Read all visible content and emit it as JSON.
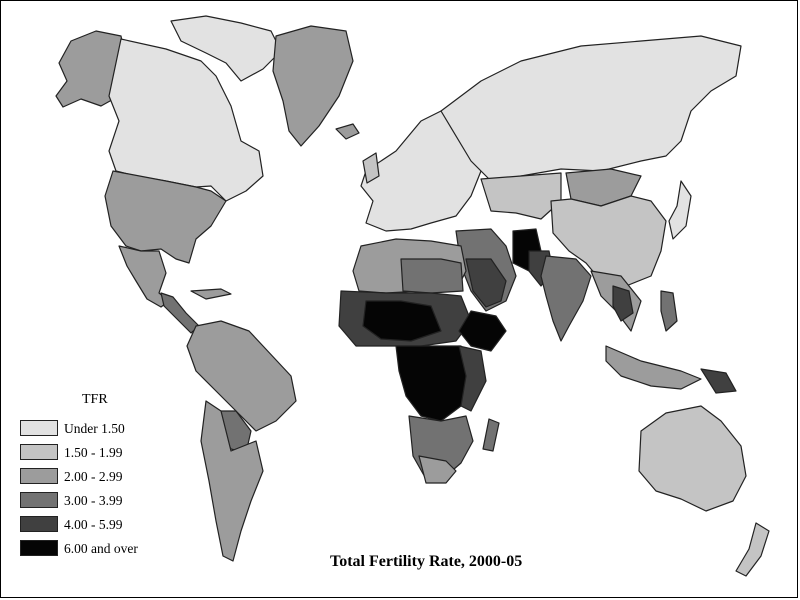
{
  "map": {
    "title": "Total Fertility Rate, 2000-05",
    "legend": {
      "title": "TFR",
      "items": [
        {
          "label": "Under 1.50",
          "color": "#e2e2e2"
        },
        {
          "label": "1.50 - 1.99",
          "color": "#c4c4c4"
        },
        {
          "label": "2.00 - 2.99",
          "color": "#9c9c9c"
        },
        {
          "label": "3.00 - 3.99",
          "color": "#727272"
        },
        {
          "label": "4.00 - 5.99",
          "color": "#404040"
        },
        {
          "label": "6.00 and over",
          "color": "#050505"
        }
      ]
    }
  }
}
